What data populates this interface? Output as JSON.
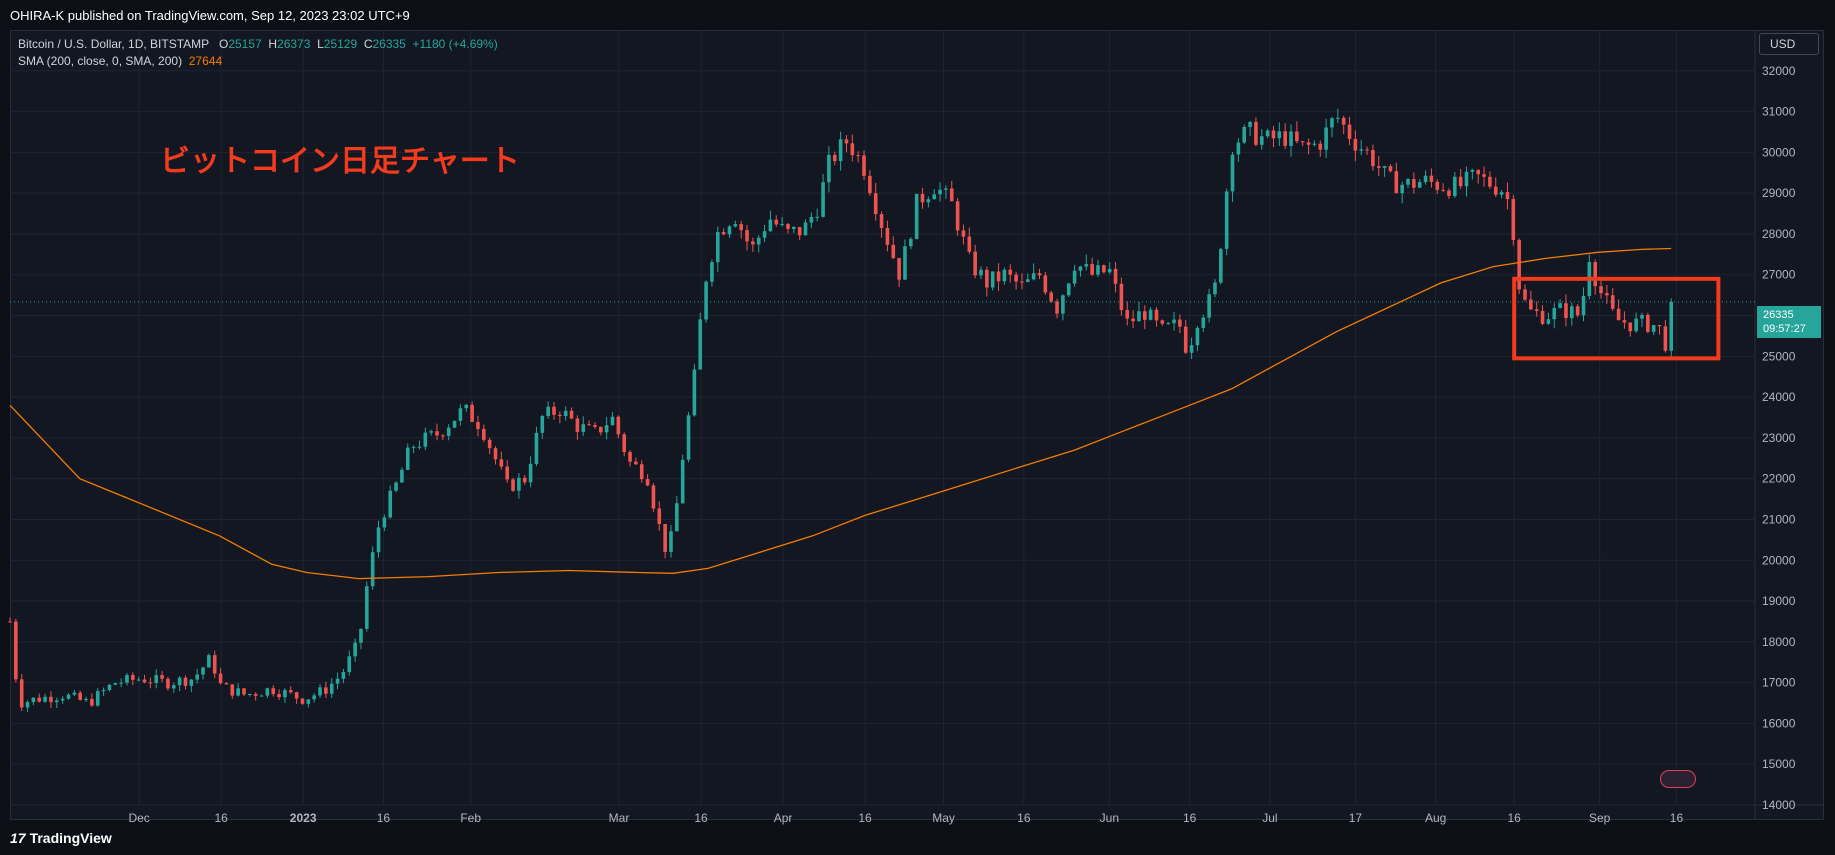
{
  "header": {
    "published": "OHIRA-K published on TradingView.com, Sep 12, 2023 23:02 UTC+9"
  },
  "legend": {
    "symbol": "Bitcoin / U.S. Dollar, 1D, BITSTAMP",
    "o_label": "O",
    "o_value": "25157",
    "h_label": "H",
    "h_value": "26373",
    "l_label": "L",
    "l_value": "25129",
    "c_label": "C",
    "c_value": "26335",
    "change": "+1180 (+4.69%)",
    "sma_label": "SMA (200, close, 0, SMA, 200)",
    "sma_value": "27644"
  },
  "currency": "USD",
  "annotation_title": "ビットコイン日足チャート",
  "last_price": {
    "price": "26335",
    "countdown": "09:57:27"
  },
  "footer": {
    "logo_text": "TradingView",
    "logo_glyph": "17"
  },
  "colors": {
    "up": "#26a69a",
    "down": "#ef5350",
    "sma": "#f57c00",
    "background": "#131722",
    "grid": "#1f2430",
    "annotation": "#f23a1d"
  },
  "chart_data": {
    "type": "candlestick",
    "y_min": 14000,
    "y_max": 33000,
    "y_ticks": [
      14000,
      15000,
      16000,
      17000,
      18000,
      19000,
      20000,
      21000,
      22000,
      23000,
      24000,
      25000,
      26000,
      27000,
      28000,
      29000,
      30000,
      31000,
      32000
    ],
    "x_ticks": [
      {
        "label": "Dec",
        "x": 0.074
      },
      {
        "label": "16",
        "x": 0.121
      },
      {
        "label": "2023",
        "x": 0.168
      },
      {
        "label": "16",
        "x": 0.214
      },
      {
        "label": "Feb",
        "x": 0.264
      },
      {
        "label": "Mar",
        "x": 0.349
      },
      {
        "label": "16",
        "x": 0.396
      },
      {
        "label": "Apr",
        "x": 0.443
      },
      {
        "label": "16",
        "x": 0.49
      },
      {
        "label": "May",
        "x": 0.535
      },
      {
        "label": "16",
        "x": 0.581
      },
      {
        "label": "Jun",
        "x": 0.63
      },
      {
        "label": "16",
        "x": 0.676
      },
      {
        "label": "Jul",
        "x": 0.722
      },
      {
        "label": "17",
        "x": 0.771
      },
      {
        "label": "Aug",
        "x": 0.817
      },
      {
        "label": "16",
        "x": 0.862
      },
      {
        "label": "Sep",
        "x": 0.911
      },
      {
        "label": "16",
        "x": 0.955
      }
    ],
    "close_path": [
      [
        0.0,
        18500
      ],
      [
        0.005,
        16500
      ],
      [
        0.015,
        16600
      ],
      [
        0.03,
        16700
      ],
      [
        0.045,
        16500
      ],
      [
        0.06,
        17000
      ],
      [
        0.075,
        17100
      ],
      [
        0.09,
        17000
      ],
      [
        0.105,
        17100
      ],
      [
        0.115,
        17600
      ],
      [
        0.121,
        16900
      ],
      [
        0.135,
        16700
      ],
      [
        0.15,
        16850
      ],
      [
        0.168,
        16600
      ],
      [
        0.18,
        16800
      ],
      [
        0.19,
        17200
      ],
      [
        0.2,
        18000
      ],
      [
        0.205,
        19500
      ],
      [
        0.212,
        21000
      ],
      [
        0.22,
        21700
      ],
      [
        0.23,
        22800
      ],
      [
        0.245,
        23100
      ],
      [
        0.26,
        23700
      ],
      [
        0.27,
        23300
      ],
      [
        0.285,
        21800
      ],
      [
        0.295,
        22000
      ],
      [
        0.305,
        23500
      ],
      [
        0.315,
        23700
      ],
      [
        0.325,
        23300
      ],
      [
        0.335,
        23100
      ],
      [
        0.345,
        23500
      ],
      [
        0.355,
        22400
      ],
      [
        0.365,
        22100
      ],
      [
        0.375,
        20300
      ],
      [
        0.38,
        20600
      ],
      [
        0.385,
        22400
      ],
      [
        0.392,
        24400
      ],
      [
        0.398,
        26800
      ],
      [
        0.405,
        28000
      ],
      [
        0.415,
        28500
      ],
      [
        0.425,
        27600
      ],
      [
        0.435,
        28400
      ],
      [
        0.445,
        28000
      ],
      [
        0.455,
        28100
      ],
      [
        0.463,
        28700
      ],
      [
        0.47,
        29800
      ],
      [
        0.48,
        30300
      ],
      [
        0.49,
        29600
      ],
      [
        0.5,
        28200
      ],
      [
        0.51,
        27000
      ],
      [
        0.52,
        28800
      ],
      [
        0.53,
        29200
      ],
      [
        0.54,
        28700
      ],
      [
        0.55,
        27300
      ],
      [
        0.56,
        26800
      ],
      [
        0.57,
        27000
      ],
      [
        0.58,
        26700
      ],
      [
        0.59,
        27000
      ],
      [
        0.6,
        26200
      ],
      [
        0.61,
        27300
      ],
      [
        0.62,
        27000
      ],
      [
        0.63,
        27100
      ],
      [
        0.64,
        25800
      ],
      [
        0.65,
        26100
      ],
      [
        0.66,
        25600
      ],
      [
        0.67,
        25800
      ],
      [
        0.675,
        25100
      ],
      [
        0.68,
        25900
      ],
      [
        0.69,
        26500
      ],
      [
        0.695,
        28200
      ],
      [
        0.7,
        30200
      ],
      [
        0.71,
        30500
      ],
      [
        0.72,
        30300
      ],
      [
        0.73,
        30400
      ],
      [
        0.74,
        30100
      ],
      [
        0.75,
        30200
      ],
      [
        0.76,
        30900
      ],
      [
        0.77,
        30300
      ],
      [
        0.78,
        29900
      ],
      [
        0.79,
        29300
      ],
      [
        0.8,
        29200
      ],
      [
        0.81,
        29300
      ],
      [
        0.82,
        29200
      ],
      [
        0.83,
        29150
      ],
      [
        0.84,
        29400
      ],
      [
        0.85,
        29200
      ],
      [
        0.855,
        29100
      ],
      [
        0.86,
        28700
      ],
      [
        0.865,
        26700
      ],
      [
        0.87,
        26100
      ],
      [
        0.88,
        26000
      ],
      [
        0.89,
        26150
      ],
      [
        0.9,
        26000
      ],
      [
        0.905,
        27500
      ],
      [
        0.91,
        26700
      ],
      [
        0.92,
        25900
      ],
      [
        0.93,
        25800
      ],
      [
        0.94,
        25800
      ],
      [
        0.945,
        25700
      ],
      [
        0.948,
        25150
      ],
      [
        0.952,
        26335
      ]
    ],
    "sma": [
      [
        0.0,
        23800
      ],
      [
        0.04,
        22000
      ],
      [
        0.08,
        21300
      ],
      [
        0.12,
        20600
      ],
      [
        0.15,
        19900
      ],
      [
        0.17,
        19700
      ],
      [
        0.2,
        19550
      ],
      [
        0.24,
        19600
      ],
      [
        0.28,
        19700
      ],
      [
        0.32,
        19750
      ],
      [
        0.36,
        19700
      ],
      [
        0.38,
        19680
      ],
      [
        0.4,
        19800
      ],
      [
        0.43,
        20200
      ],
      [
        0.46,
        20600
      ],
      [
        0.49,
        21100
      ],
      [
        0.52,
        21500
      ],
      [
        0.55,
        21900
      ],
      [
        0.58,
        22300
      ],
      [
        0.61,
        22700
      ],
      [
        0.64,
        23200
      ],
      [
        0.67,
        23700
      ],
      [
        0.7,
        24200
      ],
      [
        0.73,
        24900
      ],
      [
        0.76,
        25600
      ],
      [
        0.79,
        26200
      ],
      [
        0.82,
        26800
      ],
      [
        0.85,
        27200
      ],
      [
        0.88,
        27400
      ],
      [
        0.91,
        27550
      ],
      [
        0.935,
        27620
      ],
      [
        0.952,
        27644
      ]
    ],
    "last_price_value": 26335,
    "annotation_box": {
      "x0": 0.862,
      "x1": 0.979,
      "y0": 24950,
      "y1": 26900
    }
  }
}
